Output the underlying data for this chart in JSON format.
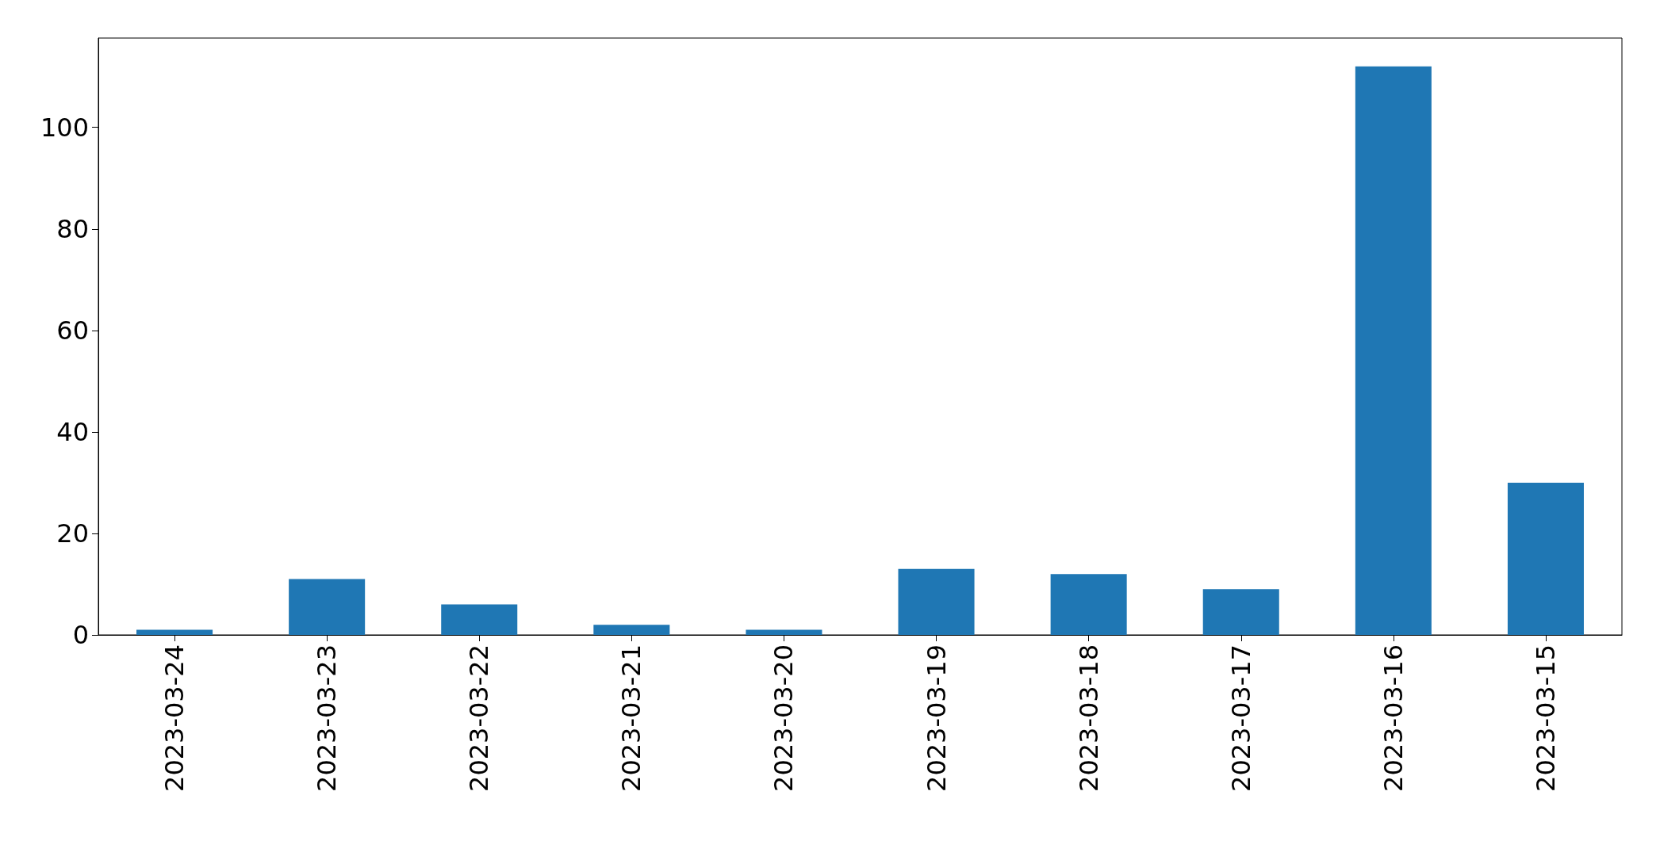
{
  "chart_data": {
    "type": "bar",
    "categories": [
      "2023-03-24",
      "2023-03-23",
      "2023-03-22",
      "2023-03-21",
      "2023-03-20",
      "2023-03-19",
      "2023-03-18",
      "2023-03-17",
      "2023-03-16",
      "2023-03-15"
    ],
    "values": [
      1,
      11,
      6,
      2,
      1,
      13,
      12,
      9,
      112,
      30
    ],
    "color": "#1f77b4",
    "ylim": [
      0,
      117.6
    ],
    "yticks": [
      0,
      20,
      40,
      60,
      80,
      100
    ]
  }
}
